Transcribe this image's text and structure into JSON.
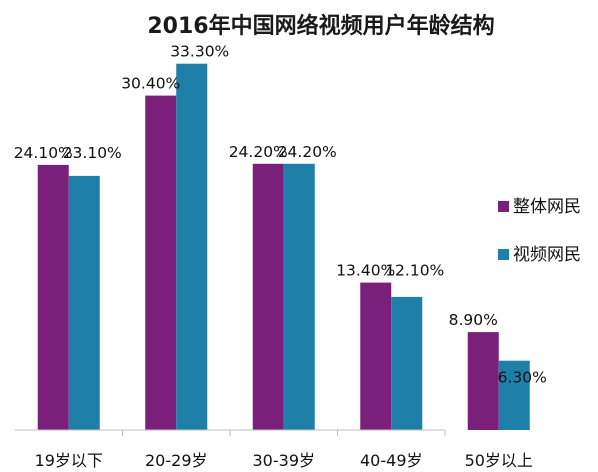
{
  "chart_data": {
    "type": "bar",
    "title": "2016年中国网络视频用户年龄结构",
    "categories": [
      "19岁以下",
      "20-29岁",
      "30-39岁",
      "40-49岁",
      "50岁以上"
    ],
    "series": [
      {
        "name": "整体网民",
        "color": "#7a1f7a",
        "values": [
          24.1,
          30.4,
          24.2,
          13.4,
          8.9
        ],
        "labels": [
          "24.10%",
          "30.40%",
          "24.20%",
          "13.40%",
          "8.90%"
        ]
      },
      {
        "name": "视频网民",
        "color": "#1e7fa8",
        "values": [
          23.1,
          33.3,
          24.2,
          12.1,
          6.3
        ],
        "labels": [
          "23.10%",
          "33.30%",
          "24.20%",
          "12.10%",
          "6.30%"
        ]
      }
    ],
    "ylim": [
      0,
      35
    ],
    "legend_position": "right",
    "grid": false
  }
}
